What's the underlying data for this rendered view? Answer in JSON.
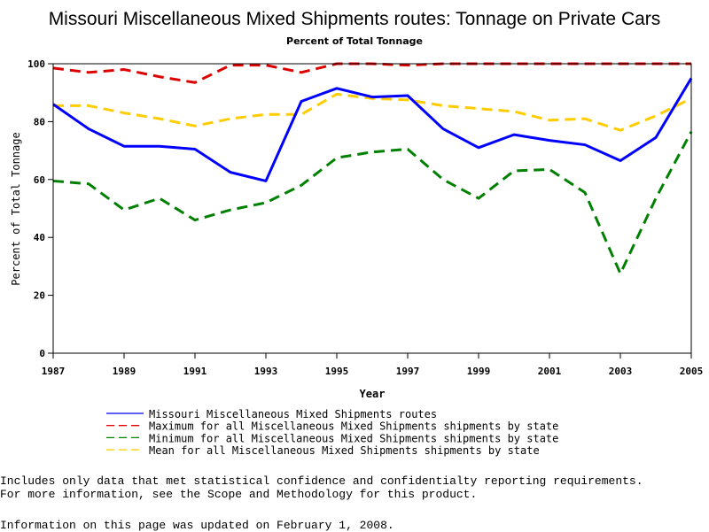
{
  "chart_data": {
    "type": "line",
    "title": "Missouri Miscellaneous Mixed Shipments routes: Tonnage on Private Cars",
    "subtitle": "Percent of Total Tonnage",
    "xlabel": "Year",
    "ylabel": "Percent of Total Tonnage",
    "xlim": [
      1987,
      2005
    ],
    "ylim": [
      0,
      100
    ],
    "x_ticks": [
      "1987",
      "1989",
      "1991",
      "1993",
      "1995",
      "1997",
      "1999",
      "2001",
      "2003",
      "2005"
    ],
    "y_ticks": [
      "0",
      "20",
      "40",
      "60",
      "80",
      "100"
    ],
    "legend_position": "bottom",
    "grid": false,
    "x": [
      1987,
      1988,
      1989,
      1990,
      1991,
      1992,
      1993,
      1994,
      1995,
      1996,
      1997,
      1998,
      1999,
      2000,
      2001,
      2002,
      2003,
      2004,
      2005
    ],
    "series": [
      {
        "name": "Missouri Miscellaneous Mixed Shipments routes",
        "color": "#0000ff",
        "style": "solid",
        "values": [
          86,
          77.5,
          71.5,
          71.5,
          70.5,
          62.5,
          59.5,
          87,
          91.5,
          88.5,
          89,
          77.5,
          71,
          75.5,
          73.5,
          72,
          66.5,
          74.5,
          95
        ]
      },
      {
        "name": "Maximum for all Miscellaneous Mixed Shipments shipments by state",
        "color": "#dd0000",
        "style": "dashed",
        "values": [
          98.5,
          97,
          98,
          95.5,
          93.5,
          99.5,
          99.5,
          97,
          100,
          100,
          99.5,
          100,
          100,
          100,
          100,
          100,
          100,
          100,
          100
        ]
      },
      {
        "name": "Minimum for all Miscellaneous Mixed Shipments shipments by state",
        "color": "#008000",
        "style": "dashed",
        "values": [
          59.5,
          58.5,
          49.5,
          53.5,
          46,
          49.5,
          52,
          58,
          67.5,
          69.5,
          70.5,
          60,
          53.5,
          63,
          63.5,
          55.5,
          27.5,
          53.5,
          76.5
        ]
      },
      {
        "name": "Mean for all Miscellaneous Mixed Shipments shipments by state",
        "color": "#ffcc00",
        "style": "dashed",
        "values": [
          85.5,
          85.5,
          83,
          81,
          78.5,
          81,
          82.5,
          82.5,
          89.5,
          88,
          87.5,
          85.5,
          84.5,
          83.5,
          80.5,
          81,
          77,
          82,
          88
        ]
      }
    ]
  },
  "notes": {
    "line1": "Includes only data that met statistical confidence and confidentialty reporting requirements.",
    "line2": "For more information, see the Scope and Methodology for this product.",
    "updated": "Information on this page was updated on February 1, 2008."
  }
}
